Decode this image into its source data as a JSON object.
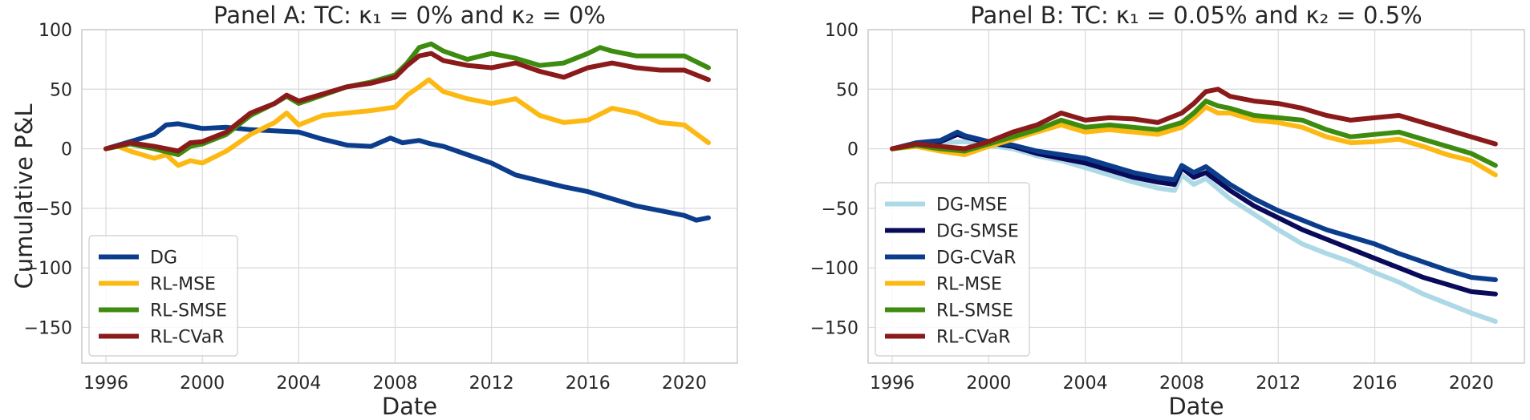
{
  "chart_data": [
    {
      "type": "line",
      "title": "Panel A: TC: κ₁ =  0% and κ₂ =  0%",
      "xlabel": "Date",
      "ylabel": "Cumulative P&L",
      "xlim": [
        1995,
        2022.2
      ],
      "ylim": [
        -180,
        100
      ],
      "xticks": [
        1996,
        2000,
        2004,
        2008,
        2012,
        2016,
        2020
      ],
      "yticks": [
        -150,
        -100,
        -50,
        0,
        50,
        100
      ],
      "xtick_labels": [
        "1996",
        "2000",
        "2004",
        "2008",
        "2012",
        "2016",
        "2020"
      ],
      "ytick_labels": [
        "−150",
        "−100",
        "−50",
        "0",
        "50",
        "100"
      ],
      "legend_position": "lower-left",
      "series": [
        {
          "name": "DG",
          "color": "#0b3d8c",
          "x": [
            1996,
            1997,
            1998,
            1998.5,
            1999,
            2000,
            2001,
            2002,
            2003,
            2004,
            2005,
            2006,
            2007,
            2007.8,
            2008.3,
            2009,
            2009.5,
            2010,
            2011,
            2012,
            2013,
            2014,
            2015,
            2016,
            2017,
            2018,
            2019,
            2020,
            2020.5,
            2021
          ],
          "y": [
            0,
            6,
            12,
            20,
            21,
            17,
            18,
            16,
            15,
            14,
            8,
            3,
            2,
            9,
            5,
            7,
            4,
            2,
            -5,
            -12,
            -22,
            -27,
            -32,
            -36,
            -42,
            -48,
            -52,
            -56,
            -60,
            -58
          ]
        },
        {
          "name": "RL-MSE",
          "color": "#fdb913",
          "x": [
            1996,
            1996.5,
            1997,
            1998,
            1998.5,
            1999,
            1999.5,
            2000,
            2001,
            2002,
            2003,
            2003.5,
            2004,
            2005,
            2006,
            2007,
            2008,
            2008.5,
            2009,
            2009.4,
            2010,
            2011,
            2012,
            2013,
            2014,
            2015,
            2016,
            2017,
            2018,
            2019,
            2020,
            2021
          ],
          "y": [
            0,
            2,
            -2,
            -8,
            -5,
            -14,
            -10,
            -12,
            -2,
            12,
            22,
            30,
            20,
            28,
            30,
            32,
            35,
            45,
            52,
            58,
            48,
            42,
            38,
            42,
            28,
            22,
            24,
            34,
            30,
            22,
            20,
            5
          ]
        },
        {
          "name": "RL-SMSE",
          "color": "#3d8c10",
          "x": [
            1996,
            1997,
            1998,
            1999,
            1999.5,
            2000,
            2001,
            2002,
            2003,
            2003.5,
            2004,
            2005,
            2006,
            2007,
            2008,
            2008.5,
            2009,
            2009.5,
            2010,
            2011,
            2012,
            2013,
            2014,
            2015,
            2016,
            2016.5,
            2017,
            2018,
            2019,
            2020,
            2021
          ],
          "y": [
            0,
            4,
            0,
            -5,
            2,
            4,
            12,
            28,
            38,
            44,
            38,
            45,
            52,
            56,
            62,
            72,
            85,
            88,
            82,
            75,
            80,
            76,
            70,
            72,
            80,
            85,
            82,
            78,
            78,
            78,
            68
          ]
        },
        {
          "name": "RL-CVaR",
          "color": "#8b1a1a",
          "x": [
            1996,
            1997,
            1998,
            1999,
            1999.5,
            2000,
            2001,
            2002,
            2003,
            2003.5,
            2004,
            2005,
            2006,
            2007,
            2008,
            2008.5,
            2009,
            2009.5,
            2010,
            2011,
            2012,
            2013,
            2014,
            2015,
            2016,
            2017,
            2018,
            2019,
            2020,
            2021
          ],
          "y": [
            0,
            5,
            2,
            -2,
            5,
            6,
            14,
            30,
            38,
            45,
            40,
            46,
            52,
            55,
            60,
            70,
            78,
            80,
            74,
            70,
            68,
            72,
            65,
            60,
            68,
            72,
            68,
            66,
            66,
            58
          ]
        }
      ]
    },
    {
      "type": "line",
      "title": "Panel B: TC: κ₁ =  0.05% and κ₂ =  0.5%",
      "xlabel": "Date",
      "ylabel": "",
      "xlim": [
        1995,
        2022.2
      ],
      "ylim": [
        -180,
        100
      ],
      "xticks": [
        1996,
        2000,
        2004,
        2008,
        2012,
        2016,
        2020
      ],
      "yticks": [
        -150,
        -100,
        -50,
        0,
        50,
        100
      ],
      "xtick_labels": [
        "1996",
        "2000",
        "2004",
        "2008",
        "2012",
        "2016",
        "2020"
      ],
      "ytick_labels": [
        "−150",
        "−100",
        "−50",
        "0",
        "50",
        "100"
      ],
      "legend_position": "lower-left",
      "series": [
        {
          "name": "DG-MSE",
          "color": "#add8e6",
          "x": [
            1996,
            1997,
            1998,
            1999,
            2000,
            2001,
            2002,
            2003,
            2004,
            2005,
            2006,
            2007,
            2007.7,
            2008,
            2008.5,
            2009,
            2010,
            2011,
            2012,
            2013,
            2014,
            2015,
            2016,
            2017,
            2018,
            2019,
            2020,
            2021
          ],
          "y": [
            0,
            3,
            5,
            6,
            3,
            0,
            -6,
            -10,
            -16,
            -22,
            -28,
            -33,
            -35,
            -22,
            -30,
            -25,
            -42,
            -55,
            -68,
            -80,
            -88,
            -95,
            -104,
            -112,
            -122,
            -130,
            -138,
            -145
          ]
        },
        {
          "name": "DG-SMSE",
          "color": "#0a0a5a",
          "x": [
            1996,
            1997,
            1998,
            1998.7,
            1999,
            2000,
            2001,
            2002,
            2003,
            2004,
            2005,
            2006,
            2007,
            2007.7,
            2008,
            2008.5,
            2009,
            2010,
            2011,
            2012,
            2013,
            2014,
            2015,
            2016,
            2017,
            2018,
            2019,
            2020,
            2021
          ],
          "y": [
            0,
            4,
            6,
            12,
            10,
            5,
            2,
            -4,
            -8,
            -12,
            -18,
            -24,
            -28,
            -30,
            -16,
            -24,
            -20,
            -35,
            -48,
            -58,
            -68,
            -76,
            -84,
            -92,
            -100,
            -108,
            -114,
            -120,
            -122
          ]
        },
        {
          "name": "DG-CVaR",
          "color": "#0b3d8c",
          "x": [
            1996,
            1997,
            1998,
            1998.7,
            1999,
            2000,
            2001,
            2002,
            2003,
            2004,
            2005,
            2006,
            2007,
            2007.7,
            2008,
            2008.5,
            2009,
            2010,
            2011,
            2012,
            2013,
            2014,
            2015,
            2016,
            2017,
            2018,
            2019,
            2020,
            2021
          ],
          "y": [
            0,
            5,
            7,
            14,
            11,
            6,
            3,
            -2,
            -5,
            -8,
            -14,
            -20,
            -24,
            -26,
            -14,
            -20,
            -15,
            -30,
            -42,
            -52,
            -60,
            -68,
            -74,
            -80,
            -88,
            -95,
            -102,
            -108,
            -110
          ]
        },
        {
          "name": "RL-MSE",
          "color": "#fdb913",
          "x": [
            1996,
            1997,
            1998,
            1999,
            2000,
            2001,
            2002,
            2003,
            2004,
            2005,
            2006,
            2007,
            2008,
            2008.5,
            2009,
            2009.5,
            2010,
            2011,
            2012,
            2013,
            2014,
            2015,
            2016,
            2017,
            2018,
            2019,
            2020,
            2021
          ],
          "y": [
            0,
            2,
            -2,
            -5,
            2,
            8,
            14,
            20,
            14,
            16,
            14,
            12,
            18,
            26,
            35,
            30,
            30,
            24,
            22,
            18,
            10,
            5,
            6,
            8,
            2,
            -5,
            -10,
            -22
          ]
        },
        {
          "name": "RL-SMSE",
          "color": "#3d8c10",
          "x": [
            1996,
            1997,
            1998,
            1999,
            2000,
            2001,
            2002,
            2003,
            2004,
            2005,
            2006,
            2007,
            2008,
            2008.5,
            2009,
            2009.5,
            2010,
            2011,
            2012,
            2013,
            2014,
            2015,
            2016,
            2017,
            2018,
            2019,
            2020,
            2021
          ],
          "y": [
            0,
            3,
            0,
            -2,
            4,
            10,
            16,
            24,
            18,
            20,
            18,
            16,
            22,
            30,
            40,
            36,
            34,
            28,
            26,
            24,
            16,
            10,
            12,
            14,
            8,
            2,
            -4,
            -14
          ]
        },
        {
          "name": "RL-CVaR",
          "color": "#8b1a1a",
          "x": [
            1996,
            1997,
            1998,
            1999,
            2000,
            2001,
            2002,
            2003,
            2004,
            2005,
            2006,
            2007,
            2008,
            2008.5,
            2009,
            2009.5,
            2010,
            2011,
            2012,
            2013,
            2014,
            2015,
            2016,
            2017,
            2018,
            2019,
            2020,
            2021
          ],
          "y": [
            0,
            4,
            2,
            0,
            6,
            14,
            20,
            30,
            24,
            26,
            25,
            22,
            30,
            38,
            48,
            50,
            44,
            40,
            38,
            34,
            28,
            24,
            26,
            28,
            22,
            16,
            10,
            4
          ]
        }
      ]
    }
  ]
}
